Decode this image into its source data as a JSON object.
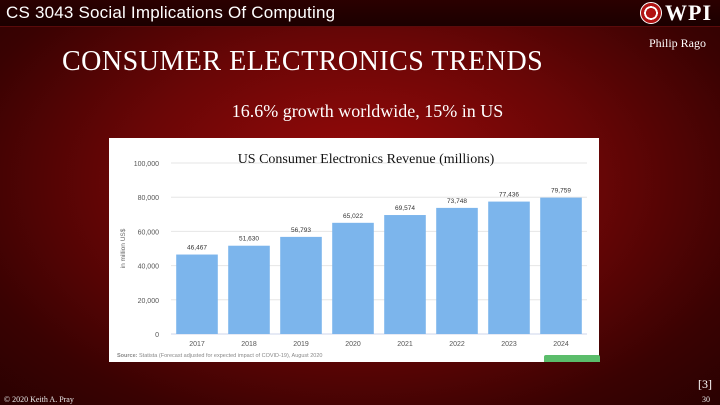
{
  "header": {
    "course": "CS 3043 Social Implications Of Computing",
    "logo_text": "WPI",
    "presenter": "Philip Rago"
  },
  "slide": {
    "title": "CONSUMER ELECTRONICS TRENDS",
    "subtitle": "16.6% growth worldwide, 15% in US",
    "reference": "[3]",
    "copyright": "© 2020 Keith A. Pray",
    "page_number": "30"
  },
  "chart_data": {
    "type": "bar",
    "title": "US Consumer Electronics Revenue (millions)",
    "ylabel": "in million US$",
    "xlabel": "",
    "categories": [
      "2017",
      "2018",
      "2019",
      "2020",
      "2021",
      "2022",
      "2023",
      "2024"
    ],
    "values": [
      46467,
      51630,
      56793,
      65022,
      69574,
      73748,
      77436,
      79759
    ],
    "value_labels": [
      "46,467",
      "51,630",
      "56,793",
      "65,022",
      "69,574",
      "73,748",
      "77,436",
      "79,759"
    ],
    "ylim": [
      0,
      100000
    ],
    "yticks": [
      0,
      20000,
      40000,
      60000,
      80000,
      100000
    ],
    "ytick_labels": [
      "0",
      "20,000",
      "40,000",
      "60,000",
      "80,000",
      "100,000"
    ],
    "grid": true,
    "bar_color": "#7cb5ec",
    "source_label": "Source:",
    "source": "Statista (Forecast adjusted for expected impact of COVID-19), August 2020"
  }
}
